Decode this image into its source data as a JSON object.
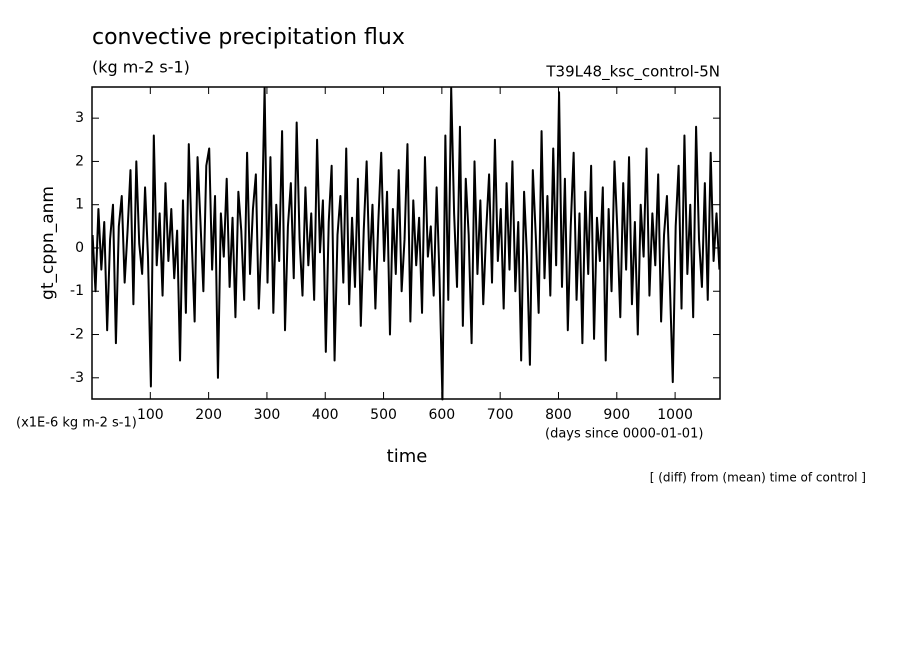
{
  "chart_data": {
    "type": "line",
    "title": "convective precipitation flux",
    "subtitle": "(kg m-2 s-1)",
    "experiment": "T39L48_ksc_control-5N",
    "ylabel": "gt_cppn_anm",
    "xlabel": "time",
    "y_unit": "(x1E-6 kg m-2 s-1)",
    "x_unit": "(days since 0000-01-01)",
    "footer": "[ (diff) from (mean) time of control ]",
    "color": "#000000",
    "xlim": [
      0,
      1077
    ],
    "ylim": [
      -3.49,
      3.72
    ],
    "xticks": [
      100,
      200,
      300,
      400,
      500,
      600,
      700,
      800,
      900,
      1000
    ],
    "yticks": [
      -3,
      -2,
      -1,
      0,
      1,
      2,
      3
    ],
    "x": [
      1,
      6,
      11,
      16,
      21,
      26,
      31,
      36,
      41,
      46,
      51,
      56,
      61,
      66,
      71,
      76,
      81,
      86,
      91,
      96,
      101,
      106,
      111,
      116,
      121,
      126,
      131,
      136,
      141,
      146,
      151,
      156,
      161,
      166,
      171,
      176,
      181,
      186,
      191,
      196,
      201,
      206,
      211,
      216,
      221,
      226,
      231,
      236,
      241,
      246,
      251,
      256,
      261,
      266,
      271,
      276,
      281,
      286,
      291,
      296,
      301,
      306,
      311,
      316,
      321,
      326,
      331,
      336,
      341,
      346,
      351,
      356,
      361,
      366,
      371,
      376,
      381,
      386,
      391,
      396,
      401,
      406,
      411,
      416,
      421,
      426,
      431,
      436,
      441,
      446,
      451,
      456,
      461,
      466,
      471,
      476,
      481,
      486,
      491,
      496,
      501,
      506,
      511,
      516,
      521,
      526,
      531,
      536,
      541,
      546,
      551,
      556,
      561,
      566,
      571,
      576,
      581,
      586,
      591,
      596,
      601,
      606,
      611,
      616,
      621,
      626,
      631,
      636,
      641,
      646,
      651,
      656,
      661,
      666,
      671,
      676,
      681,
      686,
      691,
      696,
      701,
      706,
      711,
      716,
      721,
      726,
      731,
      736,
      741,
      746,
      751,
      756,
      761,
      766,
      771,
      776,
      781,
      786,
      791,
      796,
      801,
      806,
      811,
      816,
      821,
      826,
      831,
      836,
      841,
      846,
      851,
      856,
      861,
      866,
      871,
      876,
      881,
      886,
      891,
      896,
      901,
      906,
      911,
      916,
      921,
      926,
      931,
      936,
      941,
      946,
      951,
      956,
      961,
      966,
      971,
      976,
      981,
      986,
      991,
      996,
      1001,
      1006,
      1011,
      1016,
      1021,
      1026,
      1031,
      1036,
      1041,
      1046,
      1051,
      1056,
      1061,
      1066,
      1071,
      1076
    ],
    "values": [
      0.3,
      -1.0,
      0.9,
      -0.5,
      0.6,
      -1.9,
      0.2,
      1.0,
      -2.2,
      0.5,
      1.2,
      -0.8,
      0.4,
      1.8,
      -1.3,
      2.0,
      0.1,
      -0.6,
      1.4,
      -0.2,
      -3.2,
      2.6,
      -0.4,
      0.8,
      -1.1,
      1.5,
      -0.3,
      0.9,
      -0.7,
      0.4,
      -2.6,
      1.1,
      -1.5,
      2.4,
      0.2,
      -1.7,
      2.1,
      0.6,
      -1.0,
      1.9,
      2.3,
      -0.5,
      1.2,
      -3.0,
      0.8,
      -0.2,
      1.6,
      -0.9,
      0.7,
      -1.6,
      1.3,
      0.4,
      -1.2,
      2.2,
      -0.6,
      0.9,
      1.7,
      -1.4,
      0.3,
      3.7,
      -0.8,
      2.1,
      -1.5,
      1.0,
      -0.3,
      2.7,
      -1.9,
      0.5,
      1.5,
      -0.7,
      2.9,
      0.2,
      -1.1,
      1.4,
      -0.4,
      0.8,
      -1.2,
      2.5,
      -0.1,
      1.1,
      -2.4,
      0.6,
      1.9,
      -2.6,
      0.3,
      1.2,
      -0.8,
      2.3,
      -1.3,
      0.7,
      -0.9,
      1.6,
      -1.8,
      0.4,
      2.0,
      -0.5,
      1.0,
      -1.4,
      0.6,
      2.2,
      -0.3,
      1.3,
      -2.0,
      0.9,
      -0.6,
      1.8,
      -1.0,
      0.2,
      2.4,
      -1.7,
      1.1,
      -0.4,
      0.7,
      -1.5,
      2.1,
      -0.2,
      0.5,
      -1.1,
      1.4,
      -0.7,
      -3.5,
      2.6,
      -1.2,
      3.7,
      0.8,
      -0.9,
      2.8,
      -1.8,
      1.6,
      0.3,
      -2.2,
      2.0,
      -0.6,
      1.1,
      -1.3,
      0.4,
      1.7,
      -0.8,
      2.5,
      -0.3,
      0.9,
      -1.4,
      1.5,
      -0.5,
      2.0,
      -1.0,
      0.6,
      -2.6,
      1.3,
      -0.2,
      -2.7,
      1.8,
      0.3,
      -1.5,
      2.7,
      -0.7,
      1.2,
      -1.1,
      2.3,
      -0.4,
      3.6,
      -0.9,
      1.6,
      -1.9,
      0.5,
      2.2,
      -1.2,
      0.8,
      -2.2,
      1.3,
      -0.6,
      1.9,
      -2.1,
      0.7,
      -0.3,
      1.4,
      -2.6,
      0.9,
      -1.0,
      2.0,
      0.4,
      -1.6,
      1.5,
      -0.5,
      2.1,
      -1.3,
      0.6,
      -2.0,
      1.0,
      -0.2,
      2.3,
      -1.1,
      0.8,
      -0.4,
      1.7,
      -1.7,
      0.3,
      1.2,
      -0.8,
      -3.1,
      0.5,
      1.9,
      -1.4,
      2.6,
      -0.6,
      1.0,
      -1.6,
      2.8,
      0.2,
      -0.9,
      1.5,
      -1.2,
      2.2,
      -0.3,
      0.8,
      -0.5
    ]
  }
}
